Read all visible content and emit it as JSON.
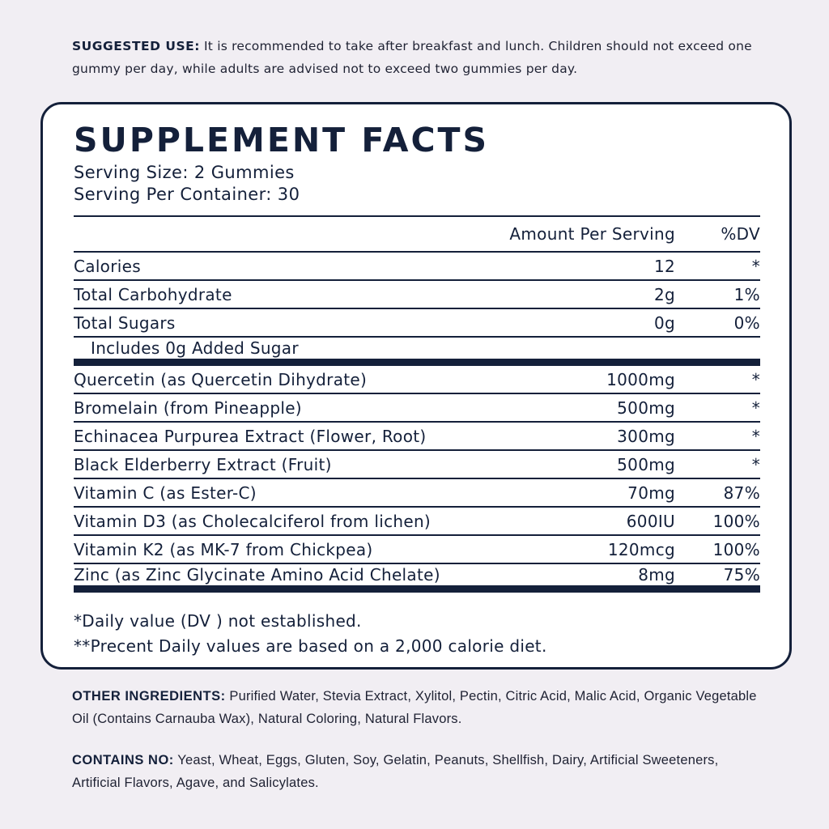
{
  "suggested_use": {
    "label": "SUGGESTED USE:",
    "text": " It is recommended to take after breakfast and lunch. Children should not exceed one gummy per day, while adults are advised not to exceed two gummies per day."
  },
  "facts": {
    "title": "SUPPLEMENT FACTS",
    "serving_size": "Serving Size: 2 Gummies",
    "servings_per_container": "Serving Per Container: 30",
    "header": {
      "amount": "Amount Per Serving",
      "dv": "%DV"
    },
    "rows": [
      {
        "name": "Calories",
        "amount": "12",
        "dv": "*"
      },
      {
        "name": "Total Carbohydrate",
        "amount": "2g",
        "dv": "1%"
      },
      {
        "name": "Total Sugars",
        "amount": "0g",
        "dv": "0%"
      },
      {
        "name": "Includes 0g Added Sugar",
        "amount": "",
        "dv": ""
      },
      {
        "name": "Quercetin (as Quercetin Dihydrate)",
        "amount": "1000mg",
        "dv": "*"
      },
      {
        "name": "Bromelain (from Pineapple)",
        "amount": "500mg",
        "dv": "*"
      },
      {
        "name": "Echinacea Purpurea Extract (Flower, Root)",
        "amount": "300mg",
        "dv": "*"
      },
      {
        "name": "Black Elderberry Extract (Fruit)",
        "amount": "500mg",
        "dv": "*"
      },
      {
        "name": "Vitamin C (as Ester-C)",
        "amount": "70mg",
        "dv": "87%"
      },
      {
        "name": "Vitamin D3 (as Cholecalciferol from lichen)",
        "amount": "600IU",
        "dv": "100%"
      },
      {
        "name": "Vitamin K2 (as MK-7 from Chickpea)",
        "amount": "120mcg",
        "dv": "100%"
      },
      {
        "name": "Zinc (as Zinc Glycinate Amino Acid Chelate)",
        "amount": "8mg",
        "dv": "75%"
      }
    ],
    "footnote1": "*Daily value (DV ) not established.",
    "footnote2": "**Precent Daily values are based  on a 2,000 calorie diet."
  },
  "other_ingredients": {
    "label": "OTHER INGREDIENTS:",
    "text": " Purified Water, Stevia Extract, Xylitol, Pectin, Citric Acid, Malic Acid, Organic Vegetable Oil (Contains Carnauba Wax), Natural Coloring, Natural Flavors."
  },
  "contains_no": {
    "label": "CONTAINS NO:",
    "text": " Yeast, Wheat, Eggs, Gluten, Soy, Gelatin, Peanuts, Shellfish, Dairy, Artificial Sweeteners, Artificial Flavors, Agave, and Salicylates."
  },
  "colors": {
    "navy": "#14203a",
    "background": "#f1eef3"
  }
}
